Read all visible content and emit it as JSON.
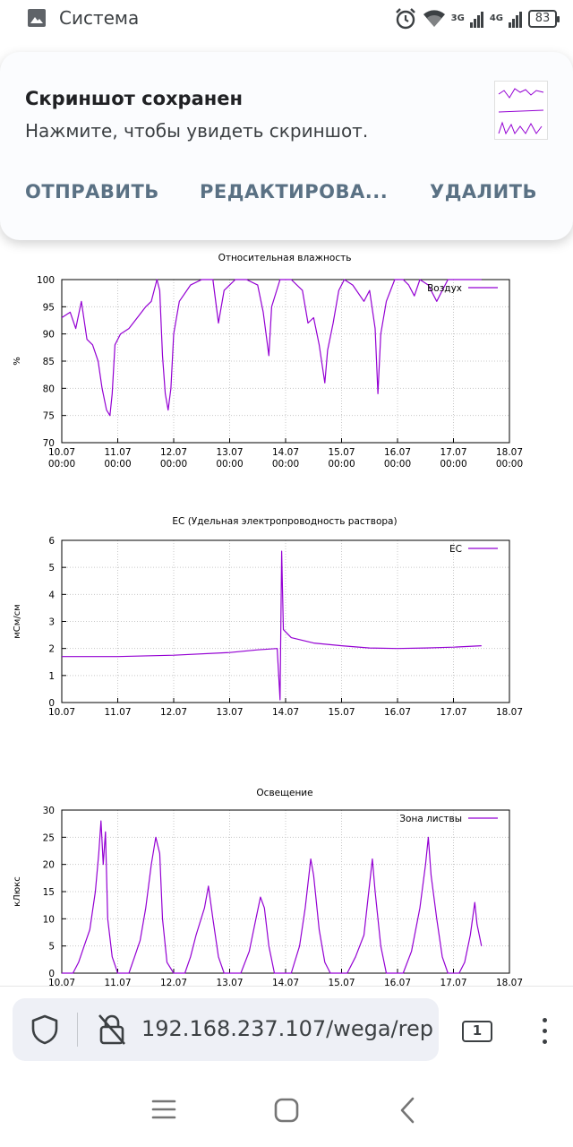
{
  "status_bar": {
    "app_name": "Система",
    "net_3g": "3G",
    "net_4g": "4G",
    "battery": "83"
  },
  "notification": {
    "title": "Скриншот сохранен",
    "text": "Нажмите, чтобы увидеть скриншот.",
    "actions": [
      "ОТПРАВИТЬ",
      "РЕДАКТИРОВА...",
      "УДАЛИТЬ"
    ]
  },
  "browser": {
    "url": "192.168.237.107/wega/rep",
    "tab_count": "1"
  },
  "x_tick_labels": [
    [
      "10.07",
      "00:00"
    ],
    [
      "11.07",
      "00:00"
    ],
    [
      "12.07",
      "00:00"
    ],
    [
      "13.07",
      "00:00"
    ],
    [
      "14.07",
      "00:00"
    ],
    [
      "15.07",
      "00:00"
    ],
    [
      "16.07",
      "00:00"
    ],
    [
      "17.07",
      "00:00"
    ],
    [
      "18.07",
      "00:00"
    ]
  ],
  "chart_data": [
    {
      "type": "line",
      "title": "Относительная влажность",
      "ylabel": "%",
      "xlabel": "",
      "ylim": [
        70,
        100
      ],
      "yticks": [
        70,
        75,
        80,
        85,
        90,
        95,
        100
      ],
      "x_unit": "days since 10.07 00:00",
      "xlim": [
        0,
        8
      ],
      "grid": true,
      "legend_position": "top-right",
      "series": [
        {
          "name": "Воздух",
          "color": "#9400d3",
          "points": [
            [
              0.0,
              93
            ],
            [
              0.15,
              94
            ],
            [
              0.25,
              91
            ],
            [
              0.35,
              96
            ],
            [
              0.45,
              89
            ],
            [
              0.55,
              88
            ],
            [
              0.65,
              85
            ],
            [
              0.72,
              80
            ],
            [
              0.8,
              76
            ],
            [
              0.86,
              75
            ],
            [
              0.9,
              79
            ],
            [
              0.95,
              88
            ],
            [
              1.05,
              90
            ],
            [
              1.2,
              91
            ],
            [
              1.35,
              93
            ],
            [
              1.5,
              95
            ],
            [
              1.6,
              96
            ],
            [
              1.7,
              100
            ],
            [
              1.75,
              98
            ],
            [
              1.8,
              86
            ],
            [
              1.85,
              79
            ],
            [
              1.9,
              76
            ],
            [
              1.95,
              80
            ],
            [
              2.0,
              90
            ],
            [
              2.1,
              96
            ],
            [
              2.3,
              99
            ],
            [
              2.5,
              100
            ],
            [
              2.7,
              100
            ],
            [
              2.8,
              92
            ],
            [
              2.9,
              98
            ],
            [
              3.1,
              100
            ],
            [
              3.3,
              100
            ],
            [
              3.5,
              99
            ],
            [
              3.6,
              94
            ],
            [
              3.7,
              86
            ],
            [
              3.75,
              95
            ],
            [
              3.9,
              100
            ],
            [
              4.1,
              100
            ],
            [
              4.3,
              98
            ],
            [
              4.4,
              92
            ],
            [
              4.5,
              93
            ],
            [
              4.6,
              88
            ],
            [
              4.7,
              81
            ],
            [
              4.75,
              87
            ],
            [
              4.85,
              92
            ],
            [
              4.95,
              98
            ],
            [
              5.05,
              100
            ],
            [
              5.2,
              99
            ],
            [
              5.4,
              96
            ],
            [
              5.5,
              98
            ],
            [
              5.6,
              91
            ],
            [
              5.65,
              79
            ],
            [
              5.7,
              90
            ],
            [
              5.8,
              96
            ],
            [
              5.95,
              100
            ],
            [
              6.1,
              100
            ],
            [
              6.2,
              99
            ],
            [
              6.3,
              97
            ],
            [
              6.4,
              100
            ],
            [
              6.55,
              99
            ],
            [
              6.7,
              96
            ],
            [
              6.8,
              98
            ],
            [
              6.9,
              100
            ],
            [
              7.1,
              100
            ],
            [
              7.3,
              100
            ],
            [
              7.5,
              100
            ]
          ]
        }
      ]
    },
    {
      "type": "line",
      "title": "EC (Удельная электропроводность раствора)",
      "ylabel": "мСм/см",
      "xlabel": "",
      "ylim": [
        0,
        6
      ],
      "yticks": [
        0,
        1,
        2,
        3,
        4,
        5,
        6
      ],
      "x_unit": "days since 10.07 00:00",
      "xlim": [
        0,
        8
      ],
      "grid": true,
      "legend_position": "top-right",
      "series": [
        {
          "name": "EC",
          "color": "#9400d3",
          "points": [
            [
              0.0,
              1.7
            ],
            [
              1.0,
              1.7
            ],
            [
              2.0,
              1.75
            ],
            [
              3.0,
              1.85
            ],
            [
              3.5,
              1.95
            ],
            [
              3.85,
              2.0
            ],
            [
              3.9,
              0.1
            ],
            [
              3.93,
              5.6
            ],
            [
              3.96,
              2.7
            ],
            [
              4.1,
              2.4
            ],
            [
              4.5,
              2.2
            ],
            [
              5.0,
              2.1
            ],
            [
              5.5,
              2.02
            ],
            [
              6.0,
              2.0
            ],
            [
              6.5,
              2.02
            ],
            [
              7.0,
              2.05
            ],
            [
              7.5,
              2.1
            ]
          ]
        }
      ]
    },
    {
      "type": "line",
      "title": "Освещение",
      "ylabel": "кЛюкс",
      "xlabel": "",
      "ylim": [
        0,
        30
      ],
      "yticks": [
        0,
        5,
        10,
        15,
        20,
        25,
        30
      ],
      "x_unit": "days since 10.07 00:00",
      "xlim": [
        0,
        8
      ],
      "grid": true,
      "legend_position": "top-right",
      "series": [
        {
          "name": "Зона листвы",
          "color": "#9400d3",
          "points": [
            [
              0.0,
              0
            ],
            [
              0.2,
              0
            ],
            [
              0.3,
              2
            ],
            [
              0.4,
              5
            ],
            [
              0.5,
              8
            ],
            [
              0.6,
              15
            ],
            [
              0.66,
              22
            ],
            [
              0.7,
              28
            ],
            [
              0.74,
              20
            ],
            [
              0.78,
              26
            ],
            [
              0.82,
              10
            ],
            [
              0.9,
              3
            ],
            [
              1.0,
              0
            ],
            [
              1.2,
              0
            ],
            [
              1.3,
              3
            ],
            [
              1.4,
              6
            ],
            [
              1.5,
              12
            ],
            [
              1.6,
              20
            ],
            [
              1.68,
              25
            ],
            [
              1.75,
              22
            ],
            [
              1.8,
              10
            ],
            [
              1.88,
              2
            ],
            [
              2.0,
              0
            ],
            [
              2.2,
              0
            ],
            [
              2.3,
              3
            ],
            [
              2.4,
              7
            ],
            [
              2.55,
              12
            ],
            [
              2.62,
              16
            ],
            [
              2.7,
              10
            ],
            [
              2.8,
              3
            ],
            [
              2.9,
              0
            ],
            [
              3.2,
              0
            ],
            [
              3.35,
              4
            ],
            [
              3.45,
              9
            ],
            [
              3.55,
              14
            ],
            [
              3.62,
              12
            ],
            [
              3.7,
              5
            ],
            [
              3.8,
              0
            ],
            [
              4.1,
              0
            ],
            [
              4.25,
              5
            ],
            [
              4.35,
              12
            ],
            [
              4.45,
              21
            ],
            [
              4.5,
              18
            ],
            [
              4.6,
              8
            ],
            [
              4.7,
              2
            ],
            [
              4.8,
              0
            ],
            [
              5.1,
              0
            ],
            [
              5.25,
              3
            ],
            [
              5.4,
              7
            ],
            [
              5.55,
              21
            ],
            [
              5.6,
              15
            ],
            [
              5.7,
              5
            ],
            [
              5.8,
              0
            ],
            [
              6.1,
              0
            ],
            [
              6.25,
              4
            ],
            [
              6.4,
              12
            ],
            [
              6.5,
              20
            ],
            [
              6.55,
              25
            ],
            [
              6.6,
              18
            ],
            [
              6.7,
              10
            ],
            [
              6.8,
              3
            ],
            [
              6.9,
              0
            ],
            [
              7.1,
              0
            ],
            [
              7.2,
              2
            ],
            [
              7.3,
              7
            ],
            [
              7.38,
              13
            ],
            [
              7.42,
              9
            ],
            [
              7.5,
              5
            ]
          ]
        }
      ]
    }
  ]
}
